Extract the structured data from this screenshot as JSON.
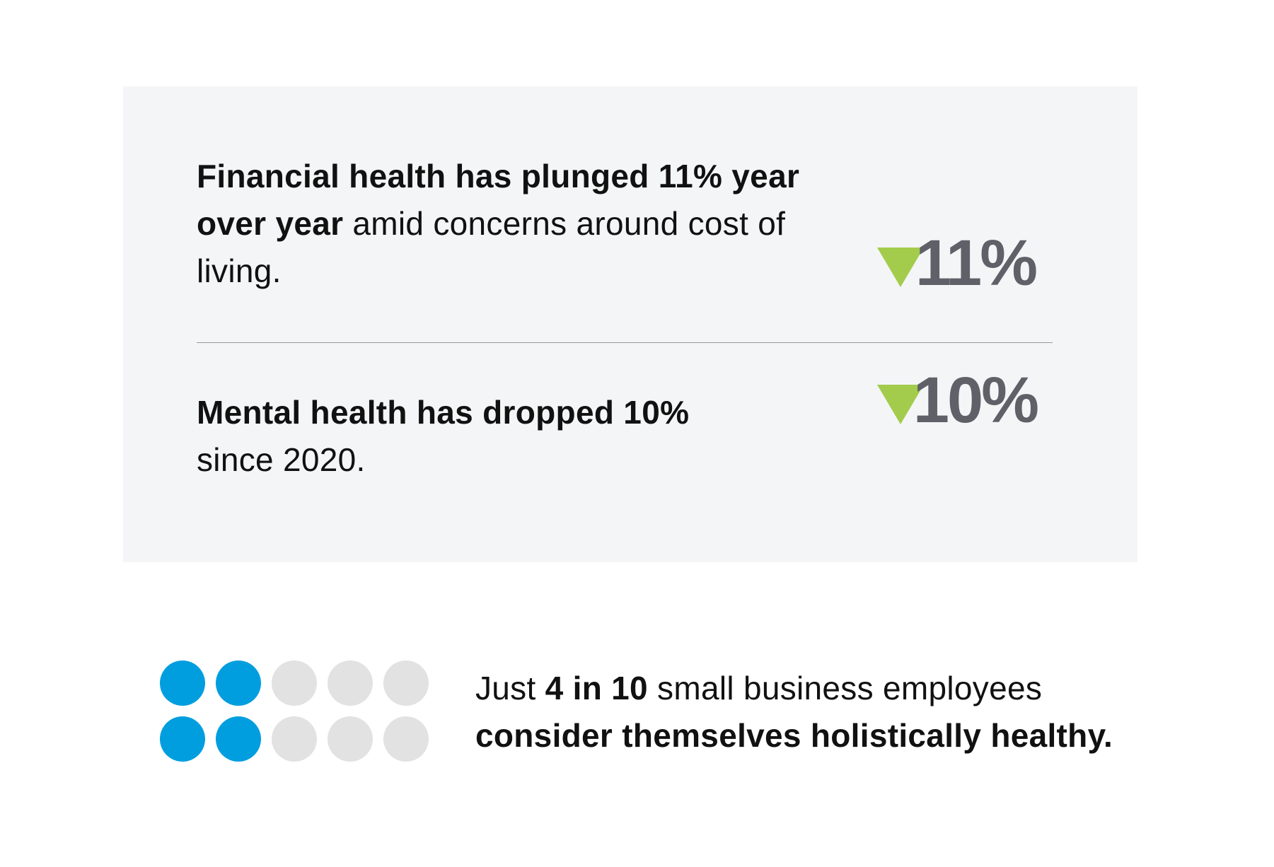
{
  "stats": [
    {
      "bold": "Financial health has plunged 11% year over year",
      "rest": " amid concerns around cost of living.",
      "value": "11%",
      "direction": "down"
    },
    {
      "bold": "Mental health has dropped 10%",
      "rest": " since 2020.",
      "value": "10%",
      "direction": "down"
    }
  ],
  "colors": {
    "arrow": "#a3cc4d",
    "value": "#5f6068",
    "panel": "#f4f5f7",
    "dot_filled": "#009edf",
    "dot_empty": "#e2e2e2"
  },
  "pictogram": {
    "filled": 4,
    "total": 10,
    "rows": 2,
    "columns": 5
  },
  "footer": {
    "prefix": "Just ",
    "highlight": "4 in 10",
    "middle": " small business employees ",
    "bold_end": "consider themselves holistically healthy."
  }
}
